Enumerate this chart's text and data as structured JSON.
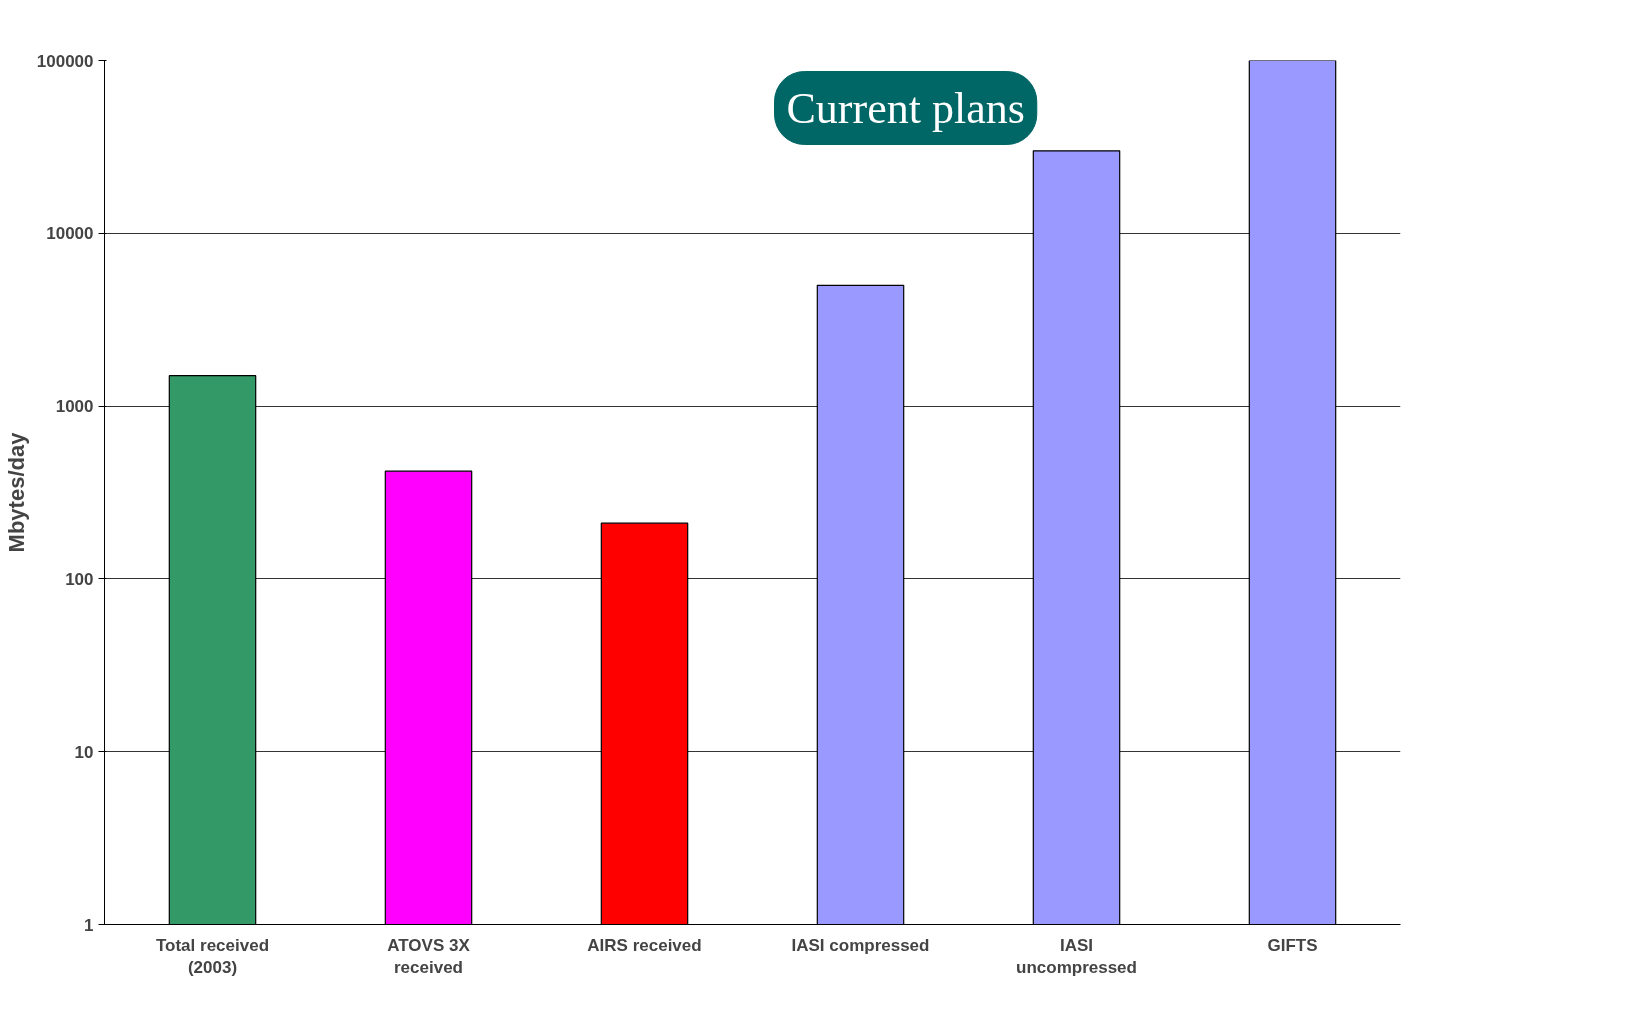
{
  "chart_data": {
    "type": "bar",
    "ylabel": "Mbytes/day",
    "log": true,
    "categories": [
      "Total received (2003)",
      "ATOVS 3X received",
      "AIRS received",
      "IASI compressed",
      "IASI uncompressed",
      "GIFTS"
    ],
    "values": [
      1500,
      420,
      210,
      5000,
      30000,
      100000
    ],
    "colors": [
      "#339966",
      "#ff00ff",
      "#ff0000",
      "#9999ff",
      "#9999ff",
      "#9999ff"
    ],
    "ylim": [
      1,
      100000
    ],
    "yticks": [
      1,
      10,
      100,
      1000,
      10000,
      100000
    ],
    "grid": "y",
    "annotations": [
      "Current plans"
    ]
  }
}
